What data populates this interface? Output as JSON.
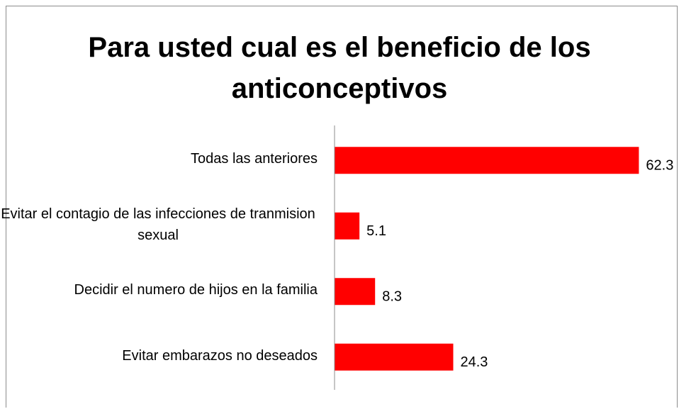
{
  "chart_data": {
    "type": "bar",
    "orientation": "horizontal",
    "title": "Para usted cual es el beneficio de los anticonceptivos",
    "categories": [
      "Todas las anteriores",
      "Evitar el contagio de las infecciones de tranmision sexual",
      "Decidir el numero de hijos en la familia",
      "Evitar embarazos no deseados"
    ],
    "values": [
      62.3,
      5.1,
      8.3,
      24.3
    ],
    "color": "#ff0000",
    "xlim": [
      0,
      65
    ]
  }
}
